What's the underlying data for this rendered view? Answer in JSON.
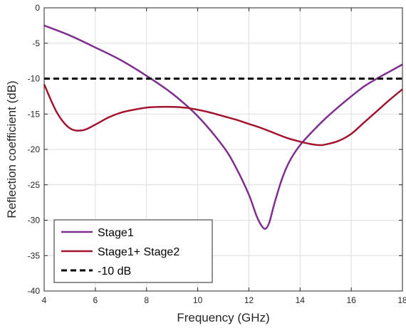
{
  "chart_data": {
    "type": "line",
    "title": "",
    "xlabel": "Frequency (GHz)",
    "ylabel": "Reflection coefficient (dB)",
    "xlim": [
      4,
      18
    ],
    "ylim": [
      -40,
      0
    ],
    "xticks": [
      4,
      6,
      8,
      10,
      12,
      14,
      16,
      18
    ],
    "yticks": [
      0,
      -5,
      -10,
      -15,
      -20,
      -25,
      -30,
      -35,
      -40
    ],
    "grid": true,
    "legend_position": "bottom-left",
    "series": [
      {
        "name": "Stage1",
        "color": "#7E2F8E",
        "style": "solid",
        "x": [
          4,
          5,
          6,
          7,
          8,
          9,
          10,
          11,
          11.5,
          12,
          12.3,
          12.5,
          12.65,
          12.8,
          13,
          13.3,
          13.6,
          14,
          14.5,
          15,
          15.5,
          16,
          16.5,
          17,
          17.5,
          18
        ],
        "y": [
          -2.5,
          -3.9,
          -5.6,
          -7.4,
          -9.6,
          -12.1,
          -15.3,
          -19.6,
          -22.6,
          -26.4,
          -29.4,
          -30.8,
          -31.2,
          -30.3,
          -27.6,
          -24.1,
          -21.6,
          -19.4,
          -17.4,
          -15.6,
          -14,
          -12.5,
          -11.1,
          -10,
          -9,
          -8
        ]
      },
      {
        "name": "Stage1+ Stage2",
        "color": "#A2142F",
        "style": "solid",
        "x": [
          4,
          4.5,
          5,
          5.5,
          6,
          6.5,
          7,
          7.5,
          8,
          8.5,
          9,
          9.5,
          10,
          10.5,
          11,
          11.5,
          12,
          12.5,
          13,
          13.5,
          14,
          14.5,
          14.8,
          15,
          15.5,
          16,
          16.5,
          17,
          17.5,
          18
        ],
        "y": [
          -10.8,
          -14.8,
          -17,
          -17.3,
          -16.5,
          -15.5,
          -14.8,
          -14.4,
          -14.1,
          -14,
          -14,
          -14.1,
          -14.4,
          -14.8,
          -15.3,
          -15.8,
          -16.4,
          -17,
          -17.7,
          -18.4,
          -18.9,
          -19.3,
          -19.4,
          -19.3,
          -18.8,
          -17.8,
          -16.2,
          -14.6,
          -13,
          -11.5
        ]
      },
      {
        "name": "-10 dB",
        "color": "#000000",
        "style": "dashed",
        "x": [
          4,
          18
        ],
        "y": [
          -10,
          -10
        ]
      }
    ]
  }
}
